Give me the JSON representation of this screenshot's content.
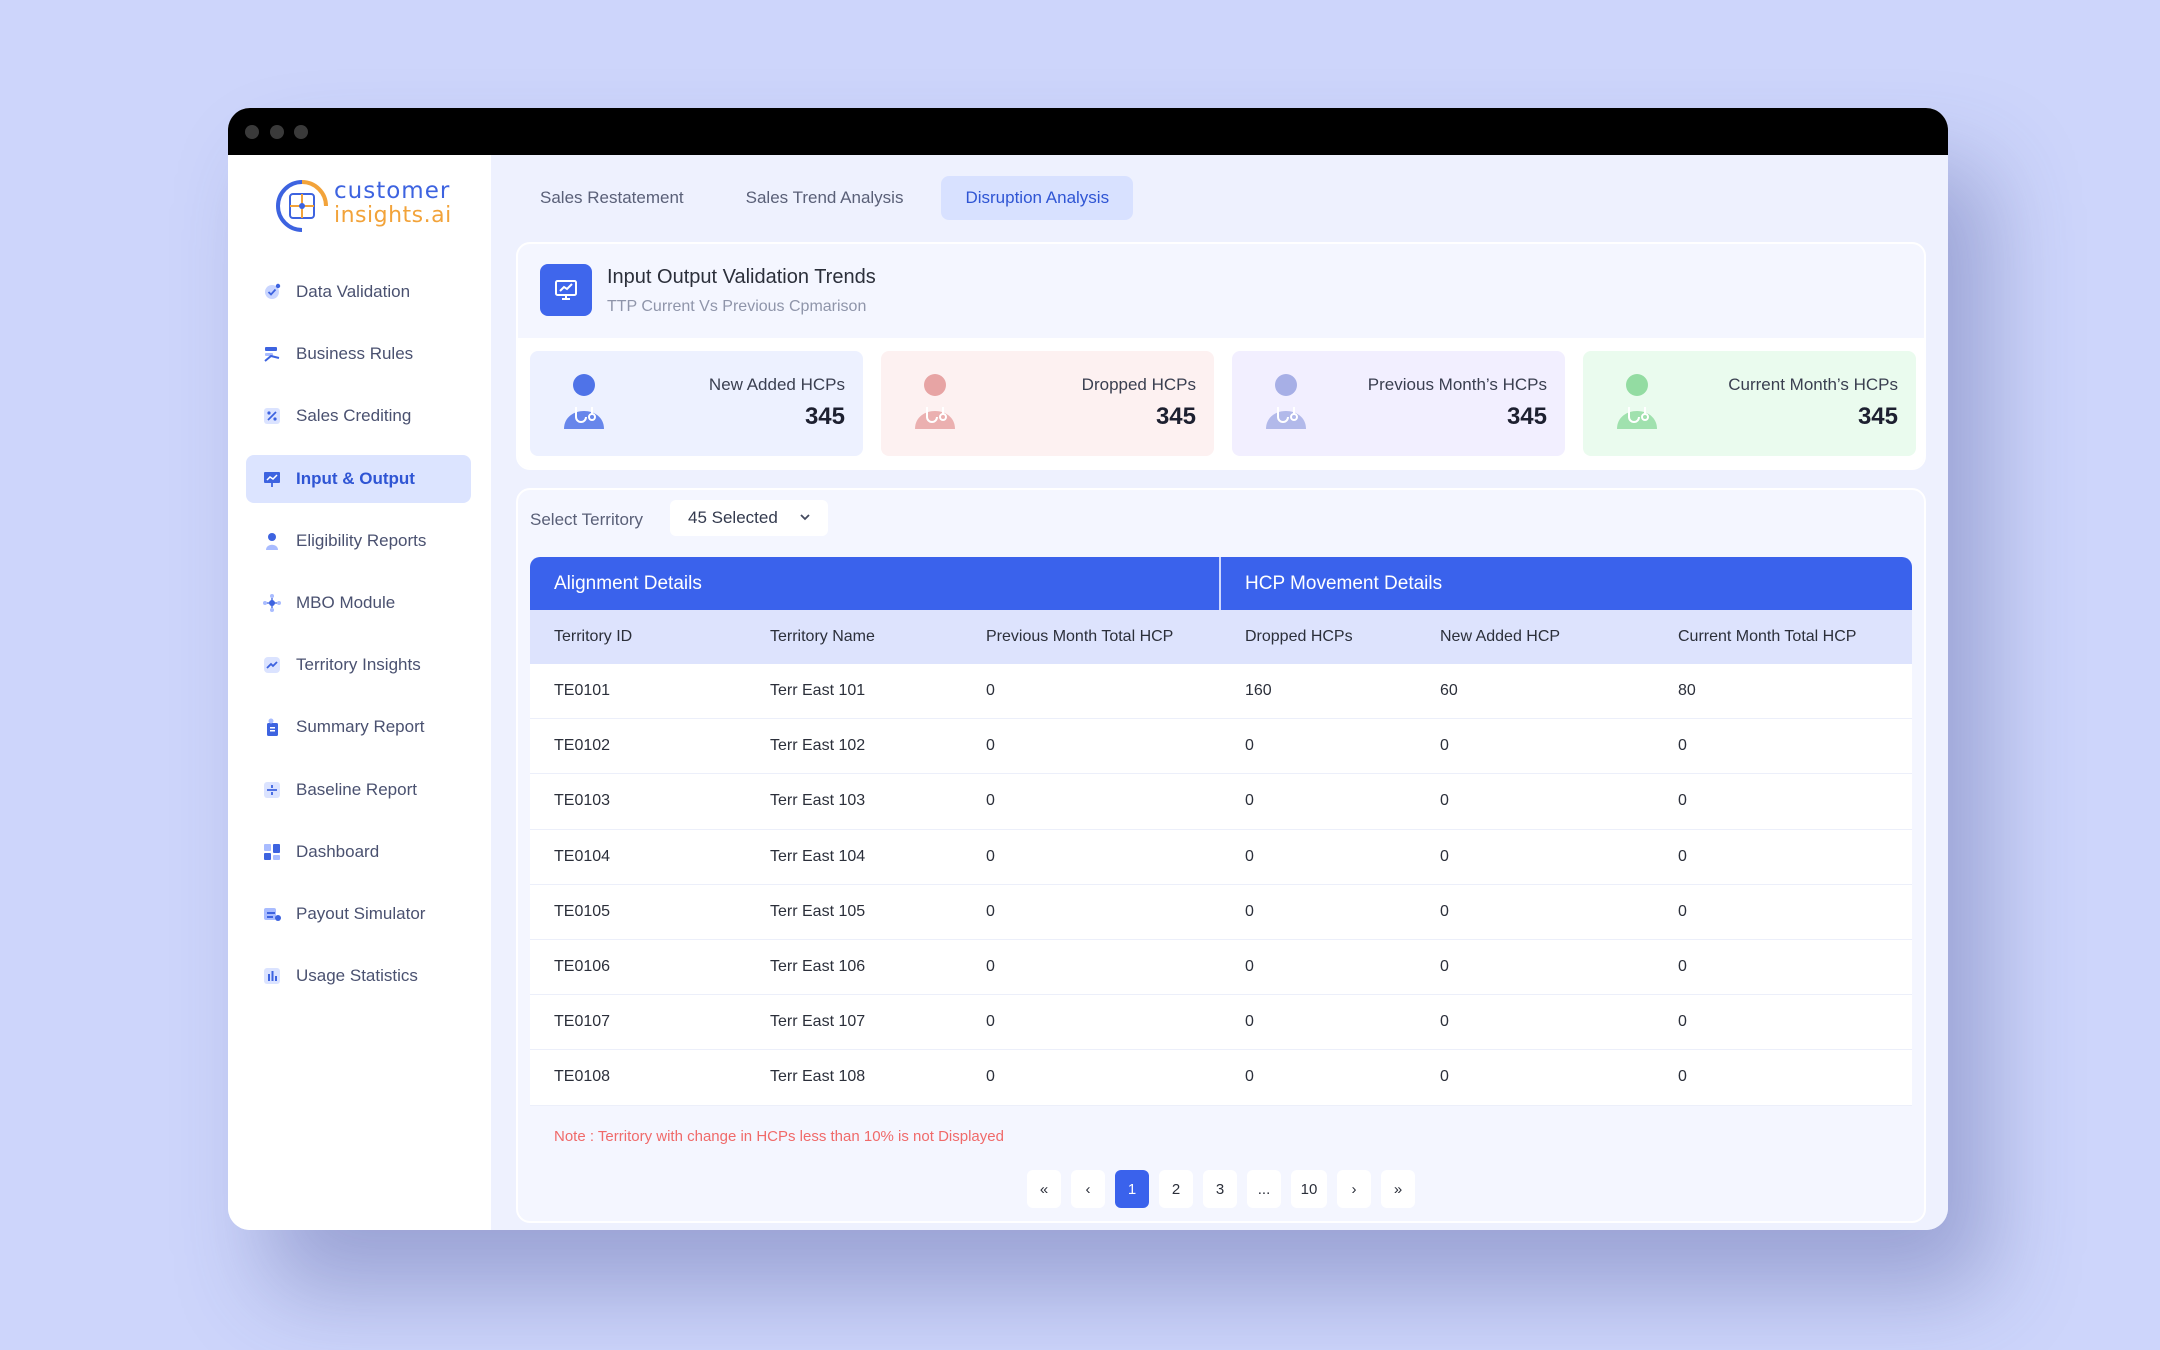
{
  "logo": {
    "line1": "customer",
    "line2": "insights.ai"
  },
  "sidebar": {
    "items": [
      {
        "label": "Data Validation",
        "icon": "check-circle-icon"
      },
      {
        "label": "Business Rules",
        "icon": "rules-icon"
      },
      {
        "label": "Sales Crediting",
        "icon": "percent-icon"
      },
      {
        "label": "Input & Output",
        "icon": "presentation-chart-icon",
        "active": true
      },
      {
        "label": "Eligibility Reports",
        "icon": "person-icon"
      },
      {
        "label": "MBO Module",
        "icon": "network-icon"
      },
      {
        "label": "Territory Insights",
        "icon": "trend-icon"
      },
      {
        "label": "Summary Report",
        "icon": "report-icon"
      },
      {
        "label": "Baseline Report",
        "icon": "baseline-icon"
      },
      {
        "label": "Dashboard",
        "icon": "dashboard-icon"
      },
      {
        "label": "Payout Simulator",
        "icon": "simulator-icon"
      },
      {
        "label": "Usage Statistics",
        "icon": "bar-stats-icon"
      }
    ]
  },
  "tabs": [
    {
      "label": "Sales Restatement"
    },
    {
      "label": "Sales Trend Analysis"
    },
    {
      "label": "Disruption Analysis",
      "active": true
    }
  ],
  "header_card": {
    "title": "Input Output Validation Trends",
    "subtitle": "TTP Current Vs Previous Cpmarison"
  },
  "stats": [
    {
      "label": "New Added HCPs",
      "value": "345",
      "bg": "#edf1ff",
      "color": "#4f73e8"
    },
    {
      "label": "Dropped HCPs",
      "value": "345",
      "bg": "#fdf1f1",
      "color": "#e7a4a4"
    },
    {
      "label": "Previous Month’s HCPs",
      "value": "345",
      "bg": "#f2efff",
      "color": "#a7afe6"
    },
    {
      "label": "Current Month’s HCPs",
      "value": "345",
      "bg": "#eafbee",
      "color": "#93dca2"
    }
  ],
  "filter": {
    "label": "Select Territory",
    "value": "45 Selected"
  },
  "table": {
    "groups": [
      "Alignment Details",
      "HCP  Movement Details"
    ],
    "columns": [
      "Territory ID",
      "Territory Name",
      "Previous Month Total HCP",
      "Dropped HCPs",
      "New Added HCP",
      "Current Month Total HCP"
    ],
    "rows": [
      [
        "TE0101",
        "Terr East 101",
        "0",
        "160",
        "60",
        "80"
      ],
      [
        "TE0102",
        "Terr East 102",
        "0",
        "0",
        "0",
        "0"
      ],
      [
        "TE0103",
        "Terr East 103",
        "0",
        "0",
        "0",
        "0"
      ],
      [
        "TE0104",
        "Terr East 104",
        "0",
        "0",
        "0",
        "0"
      ],
      [
        "TE0105",
        "Terr East 105",
        "0",
        "0",
        "0",
        "0"
      ],
      [
        "TE0106",
        "Terr East 106",
        "0",
        "0",
        "0",
        "0"
      ],
      [
        "TE0107",
        "Terr East 107",
        "0",
        "0",
        "0",
        "0"
      ],
      [
        "TE0108",
        "Terr East 108",
        "0",
        "0",
        "0",
        "0"
      ]
    ]
  },
  "note": "Note : Territory with change in HCPs less than 10% is not Displayed",
  "pagination": {
    "first": "«",
    "prev": "‹",
    "pages": [
      "1",
      "2",
      "3",
      "...",
      "10"
    ],
    "current": "1",
    "next": "›",
    "last": "»"
  }
}
